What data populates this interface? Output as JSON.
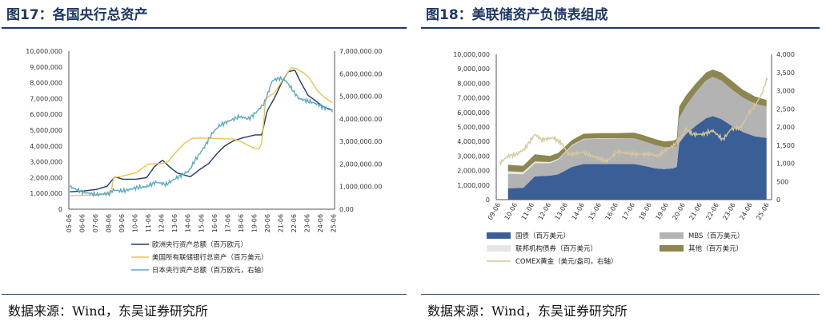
{
  "left": {
    "title": "图17：各国央行总资产",
    "source": "数据来源：Wind，东吴证券研究所",
    "chart_data": {
      "type": "line",
      "x_ticks": [
        "05-06",
        "06-06",
        "07-06",
        "08-06",
        "09-06",
        "10-06",
        "11-06",
        "12-06",
        "13-06",
        "14-06",
        "15-06",
        "16-06",
        "17-06",
        "18-06",
        "19-06",
        "20-06",
        "21-06",
        "22-06",
        "23-06",
        "24-06",
        "25-06"
      ],
      "y_left_ticks": [
        "0",
        "1,000,000",
        "2,000,000",
        "3,000,000",
        "4,000,000",
        "5,000,000",
        "6,000,000",
        "7,000,000",
        "8,000,000",
        "9,000,000",
        "10,000,000"
      ],
      "y_right_ticks": [
        "0.00",
        "1,000,000.00",
        "2,000,000.00",
        "3,000,000.00",
        "4,000,000.00",
        "5,000,000.00",
        "6,000,000.00",
        "7,000,000.00"
      ],
      "ylim_left": [
        0,
        10000000
      ],
      "ylim_right": [
        0,
        7000000
      ],
      "xlim": [
        2005.42,
        2025.5
      ],
      "series": [
        {
          "name": "欧洲央行资产总额（百万欧元）",
          "axis": "left",
          "color": "#1f3864",
          "points": [
            [
              2005.5,
              1100000
            ],
            [
              2006.5,
              1150000
            ],
            [
              2007.5,
              1250000
            ],
            [
              2008.3,
              1450000
            ],
            [
              2008.9,
              2050000
            ],
            [
              2009.5,
              1900000
            ],
            [
              2010.5,
              1900000
            ],
            [
              2011.3,
              2000000
            ],
            [
              2011.9,
              2700000
            ],
            [
              2012.5,
              3100000
            ],
            [
              2013.0,
              2700000
            ],
            [
              2013.6,
              2300000
            ],
            [
              2014.6,
              2050000
            ],
            [
              2015.3,
              2500000
            ],
            [
              2016.0,
              2900000
            ],
            [
              2016.6,
              3500000
            ],
            [
              2017.2,
              4000000
            ],
            [
              2017.8,
              4300000
            ],
            [
              2018.5,
              4500000
            ],
            [
              2019.5,
              4700000
            ],
            [
              2020.0,
              4700000
            ],
            [
              2020.4,
              6200000
            ],
            [
              2021.0,
              7100000
            ],
            [
              2021.5,
              8000000
            ],
            [
              2022.0,
              8700000
            ],
            [
              2022.5,
              8800000
            ],
            [
              2022.9,
              8100000
            ],
            [
              2023.5,
              7200000
            ],
            [
              2024.0,
              6900000
            ],
            [
              2024.6,
              6500000
            ],
            [
              2025.4,
              6250000
            ]
          ]
        },
        {
          "name": "美国所有联储银行总资产（百万美元）",
          "axis": "left",
          "color": "#f0c14b",
          "points": [
            [
              2005.5,
              850000
            ],
            [
              2006.5,
              880000
            ],
            [
              2007.5,
              900000
            ],
            [
              2008.6,
              950000
            ],
            [
              2008.8,
              2000000
            ],
            [
              2009.5,
              2100000
            ],
            [
              2010.5,
              2300000
            ],
            [
              2011.4,
              2850000
            ],
            [
              2012.5,
              2900000
            ],
            [
              2012.9,
              3000000
            ],
            [
              2013.5,
              3600000
            ],
            [
              2014.2,
              4200000
            ],
            [
              2014.8,
              4500000
            ],
            [
              2016.0,
              4500000
            ],
            [
              2017.0,
              4450000
            ],
            [
              2017.8,
              4450000
            ],
            [
              2018.5,
              4250000
            ],
            [
              2019.3,
              3900000
            ],
            [
              2019.8,
              3800000
            ],
            [
              2020.0,
              4200000
            ],
            [
              2020.3,
              7000000
            ],
            [
              2021.0,
              7400000
            ],
            [
              2021.6,
              8200000
            ],
            [
              2022.2,
              8950000
            ],
            [
              2022.6,
              8900000
            ],
            [
              2023.2,
              8600000
            ],
            [
              2023.6,
              8300000
            ],
            [
              2024.2,
              7500000
            ],
            [
              2024.7,
              7100000
            ],
            [
              2025.4,
              6700000
            ]
          ]
        },
        {
          "name": "日本央行资产总额（百万欧元，右轴）",
          "axis": "right",
          "color": "#5aabc6",
          "noise": 90000,
          "points": [
            [
              2005.5,
              1000000
            ],
            [
              2006.5,
              750000
            ],
            [
              2007.5,
              650000
            ],
            [
              2008.4,
              700000
            ],
            [
              2008.8,
              850000
            ],
            [
              2009.5,
              800000
            ],
            [
              2010.5,
              950000
            ],
            [
              2011.3,
              1000000
            ],
            [
              2012.0,
              1200000
            ],
            [
              2012.8,
              1100000
            ],
            [
              2013.3,
              1300000
            ],
            [
              2013.9,
              1500000
            ],
            [
              2014.5,
              1700000
            ],
            [
              2015.0,
              2200000
            ],
            [
              2015.6,
              2700000
            ],
            [
              2016.3,
              3400000
            ],
            [
              2016.8,
              3700000
            ],
            [
              2017.5,
              3900000
            ],
            [
              2018.3,
              4100000
            ],
            [
              2019.0,
              4000000
            ],
            [
              2019.6,
              4300000
            ],
            [
              2020.2,
              4700000
            ],
            [
              2020.8,
              5700000
            ],
            [
              2021.3,
              5800000
            ],
            [
              2021.8,
              5700000
            ],
            [
              2022.3,
              5300000
            ],
            [
              2022.8,
              4900000
            ],
            [
              2023.4,
              4800000
            ],
            [
              2024.0,
              4700000
            ],
            [
              2024.5,
              4550000
            ],
            [
              2025.4,
              4350000
            ]
          ]
        }
      ]
    }
  },
  "right": {
    "title": "图18：美联储资产负债表组成",
    "source": "数据来源：Wind，东吴证券研究所",
    "chart_data": {
      "type": "area",
      "x_ticks": [
        "09-06",
        "10-06",
        "11-06",
        "12-06",
        "13-06",
        "14-06",
        "15-06",
        "16-06",
        "17-06",
        "18-06",
        "19-06",
        "20-06",
        "21-06",
        "22-06",
        "23-06",
        "24-06",
        "25-06"
      ],
      "y_left_ticks": [
        "0",
        "1,000,000",
        "2,000,000",
        "3,000,000",
        "4,000,000",
        "5,000,000",
        "6,000,000",
        "7,000,000",
        "8,000,000",
        "9,000,000",
        "10,000,000"
      ],
      "y_right_ticks": [
        "0",
        "500",
        "1,000",
        "1,500",
        "2,000",
        "2,500",
        "3,000",
        "3,500",
        "4,000"
      ],
      "ylim_left": [
        0,
        10000000
      ],
      "ylim_right": [
        0,
        4000
      ],
      "xlim": [
        2009.3,
        2025.7
      ],
      "x_start": 2010.0,
      "x": [
        2010.0,
        2010.9,
        2011.6,
        2012.5,
        2013.0,
        2013.8,
        2014.5,
        2015.5,
        2016.5,
        2017.5,
        2018.0,
        2018.8,
        2019.3,
        2019.8,
        2020.05,
        2020.2,
        2020.6,
        2021.2,
        2021.8,
        2022.2,
        2022.7,
        2023.3,
        2024.0,
        2024.7,
        2025.4
      ],
      "series": [
        {
          "name": "国债（百万美元）",
          "color": "#3a5f96",
          "values": [
            780000,
            800000,
            1600000,
            1650000,
            1750000,
            2250000,
            2450000,
            2450000,
            2450000,
            2450000,
            2350000,
            2150000,
            2100000,
            2150000,
            2250000,
            3900000,
            4500000,
            5100000,
            5600000,
            5750000,
            5550000,
            5100000,
            4650000,
            4350000,
            4250000
          ]
        },
        {
          "name": "MBS（百万美元）",
          "color": "#b3b3b3",
          "values": [
            1000000,
            950000,
            900000,
            850000,
            1000000,
            1450000,
            1700000,
            1750000,
            1750000,
            1750000,
            1700000,
            1600000,
            1500000,
            1450000,
            1400000,
            1700000,
            1950000,
            2300000,
            2600000,
            2700000,
            2650000,
            2500000,
            2350000,
            2250000,
            2150000
          ]
        },
        {
          "name": "联邦机构债券（百万美元）",
          "color": "#e6e6e6",
          "values": [
            170000,
            150000,
            120000,
            90000,
            70000,
            45000,
            35000,
            25000,
            20000,
            10000,
            5000,
            5000,
            3000,
            3000,
            3000,
            3000,
            3000,
            3000,
            3000,
            3000,
            3000,
            3000,
            3000,
            3000,
            3000
          ]
        },
        {
          "name": "其他（百万美元）",
          "color": "#8c8650",
          "values": [
            450000,
            430000,
            500000,
            420000,
            400000,
            350000,
            350000,
            350000,
            350000,
            400000,
            400000,
            400000,
            400000,
            450000,
            500000,
            800000,
            700000,
            600000,
            550000,
            500000,
            550000,
            600000,
            550000,
            500000,
            450000
          ]
        }
      ],
      "gold": {
        "name": "COMEX黄金（美元/盎司，右轴）",
        "axis": "right",
        "color": "#d6c79a",
        "points": [
          [
            2009.5,
            1000
          ],
          [
            2010.0,
            1200
          ],
          [
            2010.5,
            1250
          ],
          [
            2011.0,
            1400
          ],
          [
            2011.6,
            1800
          ],
          [
            2012.0,
            1650
          ],
          [
            2012.7,
            1700
          ],
          [
            2013.2,
            1550
          ],
          [
            2013.6,
            1250
          ],
          [
            2014.5,
            1300
          ],
          [
            2015.0,
            1200
          ],
          [
            2015.9,
            1060
          ],
          [
            2016.5,
            1320
          ],
          [
            2017.5,
            1250
          ],
          [
            2018.5,
            1250
          ],
          [
            2018.9,
            1200
          ],
          [
            2019.5,
            1400
          ],
          [
            2019.9,
            1500
          ],
          [
            2020.3,
            1700
          ],
          [
            2020.6,
            1950
          ],
          [
            2021.0,
            1800
          ],
          [
            2021.6,
            1800
          ],
          [
            2022.2,
            1900
          ],
          [
            2022.8,
            1650
          ],
          [
            2023.3,
            1950
          ],
          [
            2023.9,
            2000
          ],
          [
            2024.3,
            2350
          ],
          [
            2024.8,
            2650
          ],
          [
            2025.1,
            2900
          ],
          [
            2025.5,
            3400
          ]
        ]
      }
    }
  }
}
